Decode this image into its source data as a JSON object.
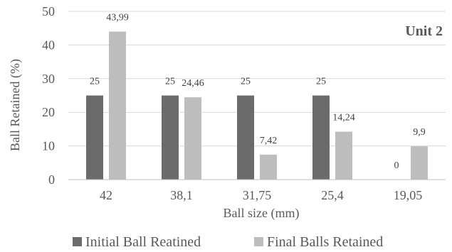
{
  "chart_data": {
    "type": "bar",
    "title": "",
    "annotation": "Unit 2",
    "xlabel": "Ball size (mm)",
    "ylabel": "Ball Retained (%)",
    "ylim": [
      0,
      50
    ],
    "yticks": [
      "0",
      "10",
      "20",
      "30",
      "40",
      "50"
    ],
    "grid": true,
    "legend_position": "bottom",
    "categories": [
      "42",
      "38,1",
      "31,75",
      "25,4",
      "19,05"
    ],
    "series": [
      {
        "name": "Initial Ball Reatined",
        "color": "#6b6b6b",
        "values": [
          25,
          25,
          25,
          25,
          0
        ],
        "labels": [
          "25",
          "25",
          "25",
          "25",
          "0"
        ]
      },
      {
        "name": "Final Balls Retained",
        "color": "#bdbdbd",
        "values": [
          43.99,
          24.46,
          7.42,
          14.24,
          9.9
        ],
        "labels": [
          "43,99",
          "24,46",
          "7,42",
          "14,24",
          "9,9"
        ]
      }
    ]
  }
}
